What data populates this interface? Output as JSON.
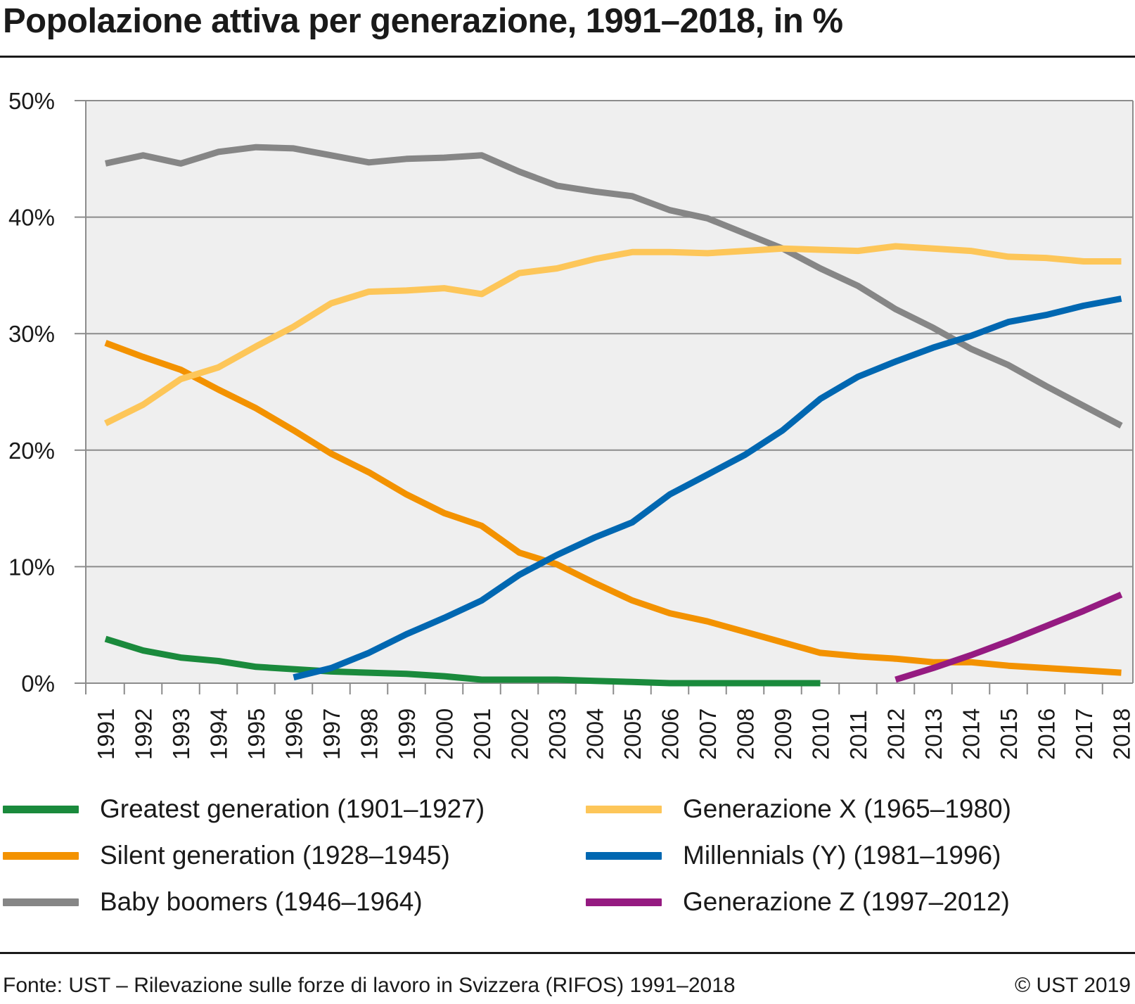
{
  "title": "Popolazione attiva per generazione, 1991–2018, in %",
  "source": "Fonte: UST – Rilevazione sulle forze di lavoro in Svizzera (RIFOS) 1991–2018",
  "copyright": "© UST 2019",
  "chart_data": {
    "type": "line",
    "title": "Popolazione attiva per generazione, 1991–2018, in %",
    "xlabel": "",
    "ylabel": "",
    "ylim": [
      0,
      50
    ],
    "yticks": [
      "0%",
      "10%",
      "20%",
      "30%",
      "40%",
      "50%"
    ],
    "grid": true,
    "legend_position": "bottom",
    "background": "#efefef",
    "categories": [
      "1991",
      "1992",
      "1993",
      "1994",
      "1995",
      "1996",
      "1997",
      "1998",
      "1999",
      "2000",
      "2001",
      "2002",
      "2003",
      "2004",
      "2005",
      "2006",
      "2007",
      "2008",
      "2009",
      "2010",
      "2011",
      "2012",
      "2013",
      "2014",
      "2015",
      "2016",
      "2017",
      "2018"
    ],
    "series": [
      {
        "name": "Greatest generation (1901–1927)",
        "color": "#1a8a3c",
        "values": [
          3.8,
          2.8,
          2.2,
          1.9,
          1.4,
          1.2,
          1.0,
          0.9,
          0.8,
          0.6,
          0.3,
          0.3,
          0.3,
          0.2,
          0.1,
          0.0,
          0.0,
          0.0,
          0.0,
          0.0,
          null,
          null,
          null,
          null,
          null,
          null,
          null,
          null
        ]
      },
      {
        "name": "Silent generation (1928–1945)",
        "color": "#f39200",
        "values": [
          29.2,
          28.0,
          26.9,
          25.2,
          23.6,
          21.7,
          19.7,
          18.1,
          16.2,
          14.6,
          13.5,
          11.2,
          10.2,
          8.6,
          7.1,
          6.0,
          5.3,
          4.4,
          3.5,
          2.6,
          2.3,
          2.1,
          1.8,
          1.8,
          1.5,
          1.3,
          1.1,
          0.9
        ]
      },
      {
        "name": "Baby boomers (1946–1964)",
        "color": "#868686",
        "values": [
          44.6,
          45.3,
          44.6,
          45.6,
          46.0,
          45.9,
          45.3,
          44.7,
          45.0,
          45.1,
          45.3,
          43.9,
          42.7,
          42.2,
          41.8,
          40.6,
          39.9,
          38.6,
          37.3,
          35.6,
          34.1,
          32.1,
          30.5,
          28.7,
          27.3,
          25.5,
          23.8,
          22.1
        ]
      },
      {
        "name": "Generazione X (1965–1980)",
        "color": "#fdc659",
        "values": [
          22.3,
          23.9,
          26.1,
          27.1,
          28.9,
          30.6,
          32.6,
          33.6,
          33.7,
          33.9,
          33.4,
          35.2,
          35.6,
          36.4,
          37.0,
          37.0,
          36.9,
          37.1,
          37.3,
          37.2,
          37.1,
          37.5,
          37.3,
          37.1,
          36.6,
          36.5,
          36.2,
          36.2
        ]
      },
      {
        "name": "Millennials (Y) (1981–1996)",
        "color": "#0067b1",
        "values": [
          null,
          null,
          null,
          null,
          null,
          0.5,
          1.3,
          2.6,
          4.2,
          5.6,
          7.1,
          9.3,
          11.0,
          12.5,
          13.8,
          16.2,
          17.9,
          19.6,
          21.7,
          24.4,
          26.3,
          27.6,
          28.8,
          29.8,
          31.0,
          31.6,
          32.4,
          33.0
        ]
      },
      {
        "name": "Generazione Z (1997–2012)",
        "color": "#951b81",
        "values": [
          null,
          null,
          null,
          null,
          null,
          null,
          null,
          null,
          null,
          null,
          null,
          null,
          null,
          null,
          null,
          null,
          null,
          null,
          null,
          null,
          null,
          0.3,
          1.3,
          2.4,
          3.6,
          4.9,
          6.2,
          7.6
        ]
      }
    ]
  }
}
